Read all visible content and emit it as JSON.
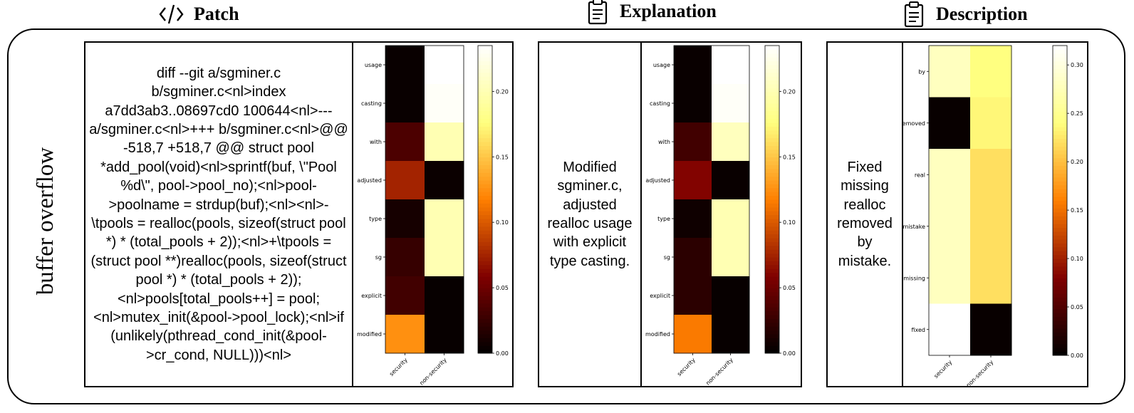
{
  "headers": {
    "patch": "Patch",
    "explanation": "Explanation",
    "description": "Description"
  },
  "icons": {
    "patch": "code-icon",
    "explanation": "clipboard-icon",
    "description": "clipboard-icon"
  },
  "row_label": "buffer overflow",
  "texts": {
    "patch": "diff --git a/sgminer.c b/sgminer.c<nl>index a7dd3ab3..08697cd0 100644<nl>--- a/sgminer.c<nl>+++ b/sgminer.c<nl>@@ -518,7 +518,7 @@ struct pool *add_pool(void)<nl>sprintf(buf, \\\"Pool %d\\\", pool->pool_no);<nl>pool->poolname = strdup(buf);<nl><nl>-\\tpools = realloc(pools, sizeof(struct pool *) * (total_pools + 2));<nl>+\\tpools = (struct pool **)realloc(pools, sizeof(struct pool *) * (total_pools + 2));<nl>pools[total_pools++] = pool;<nl>mutex_init(&pool->pool_lock);<nl>if (unlikely(pthread_cond_init(&pool->cr_cond, NULL)))<nl>",
    "explanation": "Modified sgminer.c, adjusted realloc usage with explicit type casting.",
    "description": "Fixed missing realloc removed by mistake."
  },
  "chart_data": [
    {
      "type": "heatmap",
      "x_labels": [
        "security",
        "non-security"
      ],
      "y_labels": [
        "usage",
        "casting",
        "with",
        "adjusted",
        "type",
        "sg",
        "explicit",
        "modified"
      ],
      "values": [
        [
          0.004,
          0.235
        ],
        [
          0.004,
          0.232
        ],
        [
          0.035,
          0.2
        ],
        [
          0.075,
          0.005
        ],
        [
          0.01,
          0.2
        ],
        [
          0.025,
          0.2
        ],
        [
          0.03,
          0.003
        ],
        [
          0.125,
          0.003
        ]
      ],
      "vmin": 0,
      "vmax": 0.235,
      "colorbar_ticks": [
        0.0,
        0.05,
        0.1,
        0.15,
        0.2
      ],
      "colorbar_labels": [
        "0.00",
        "0.05",
        "0.10",
        "0.15",
        "0.20"
      ],
      "colormap": "afmhot"
    },
    {
      "type": "heatmap",
      "x_labels": [
        "security",
        "non-security"
      ],
      "y_labels": [
        "usage",
        "casting",
        "with",
        "adjusted",
        "type",
        "sg",
        "explicit",
        "modified"
      ],
      "values": [
        [
          0.004,
          0.235
        ],
        [
          0.004,
          0.232
        ],
        [
          0.03,
          0.205
        ],
        [
          0.06,
          0.004
        ],
        [
          0.007,
          0.2
        ],
        [
          0.02,
          0.2
        ],
        [
          0.02,
          0.003
        ],
        [
          0.115,
          0.003
        ]
      ],
      "vmin": 0,
      "vmax": 0.235,
      "colorbar_ticks": [
        0.0,
        0.05,
        0.1,
        0.15,
        0.2
      ],
      "colorbar_labels": [
        "0.00",
        "0.05",
        "0.10",
        "0.15",
        "0.20"
      ],
      "colormap": "afmhot"
    },
    {
      "type": "heatmap",
      "x_labels": [
        "security",
        "non-security"
      ],
      "y_labels": [
        "by",
        "removed",
        "real",
        "mistake",
        "missing",
        "fixed"
      ],
      "values": [
        [
          0.28,
          0.24
        ],
        [
          0.005,
          0.235
        ],
        [
          0.28,
          0.22
        ],
        [
          0.28,
          0.22
        ],
        [
          0.28,
          0.22
        ],
        [
          0.32,
          0.005
        ]
      ],
      "vmin": 0,
      "vmax": 0.32,
      "colorbar_ticks": [
        0.0,
        0.05,
        0.1,
        0.15,
        0.2,
        0.25,
        0.3
      ],
      "colorbar_labels": [
        "0.00",
        "0.05",
        "0.10",
        "0.15",
        "0.20",
        "0.25",
        "0.30"
      ],
      "colormap": "afmhot"
    }
  ]
}
